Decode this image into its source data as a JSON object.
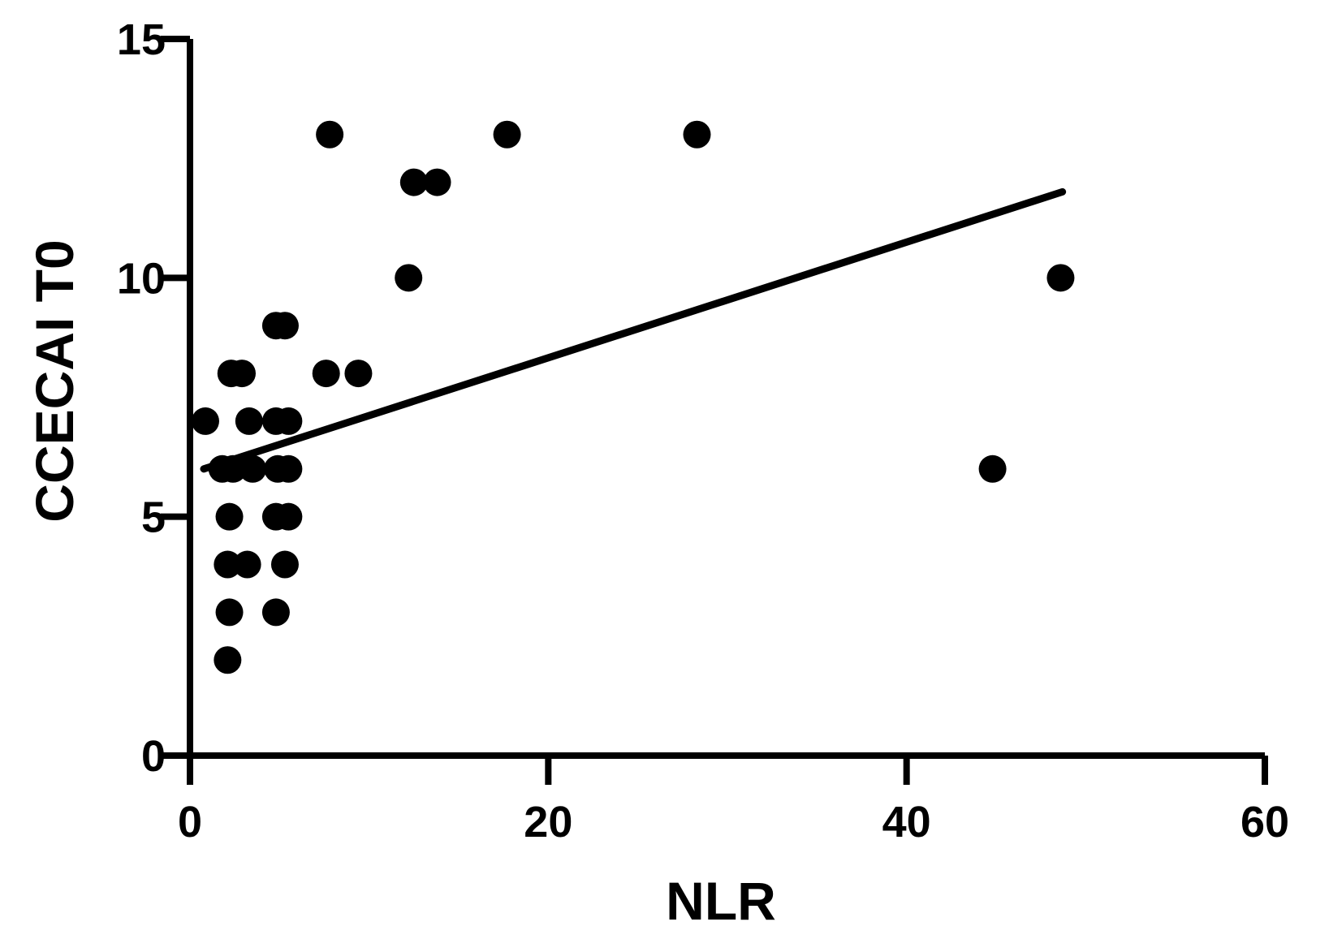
{
  "chart_data": {
    "type": "scatter",
    "x_label": "NLR",
    "y_label": "CCECAI T0",
    "x": [
      0.86,
      7.8,
      17.7,
      28.3,
      12.5,
      13.8,
      12.2,
      48.6,
      4.8,
      5.3,
      7.6,
      9.4,
      2.3,
      2.9,
      3.3,
      4.8,
      5.5,
      1.8,
      2.4,
      3.5,
      4.9,
      5.5,
      44.8,
      2.2,
      4.8,
      5.5,
      2.1,
      3.2,
      5.3,
      2.2,
      4.8,
      2.1
    ],
    "y": [
      7,
      13,
      13,
      13,
      12,
      12,
      10,
      10,
      9,
      9,
      8,
      8,
      8,
      8,
      7,
      7,
      7,
      6,
      6,
      6,
      6,
      6,
      6,
      5,
      5,
      5,
      4,
      4,
      4,
      3,
      3,
      2
    ],
    "color": "#000000",
    "fit_line": {
      "x": [
        0.77,
        48.7
      ],
      "y": [
        6.0,
        11.8
      ]
    },
    "xlim": [
      0,
      60
    ],
    "xticks": [
      0,
      20,
      40,
      60
    ],
    "ylim": [
      0,
      15
    ],
    "yticks": [
      0,
      5,
      10,
      15
    ]
  }
}
